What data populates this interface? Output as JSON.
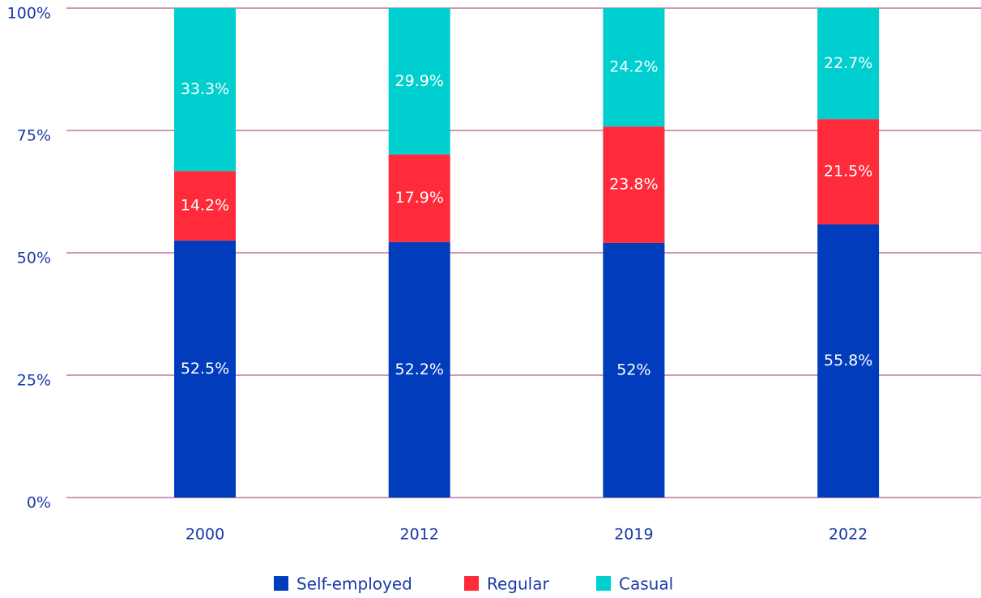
{
  "chart_data": {
    "type": "stacked-bar",
    "categories": [
      "2000",
      "2012",
      "2019",
      "2022"
    ],
    "series": [
      {
        "name": "Self-employed",
        "color": "#003cbc",
        "values": [
          52.5,
          52.2,
          52,
          55.8
        ],
        "value_labels": [
          "52.5%",
          "52.2%",
          "52%",
          "55.8%"
        ]
      },
      {
        "name": "Regular",
        "color": "#ff2a3a",
        "values": [
          14.2,
          17.9,
          23.8,
          21.5
        ],
        "value_labels": [
          "14.2%",
          "17.9%",
          "23.8%",
          "21.5%"
        ]
      },
      {
        "name": "Casual",
        "color": "#00cfcf",
        "values": [
          33.3,
          29.9,
          24.2,
          22.7
        ],
        "value_labels": [
          "33.3%",
          "29.9%",
          "24.2%",
          "22.7%"
        ]
      }
    ],
    "ylim": [
      0,
      100
    ],
    "yticks": [
      {
        "value": 0,
        "label": "0%"
      },
      {
        "value": 25,
        "label": "25%"
      },
      {
        "value": 50,
        "label": "50%"
      },
      {
        "value": 75,
        "label": "75%"
      },
      {
        "value": 100,
        "label": "100%"
      }
    ],
    "grid": true,
    "legend": "bottom"
  }
}
